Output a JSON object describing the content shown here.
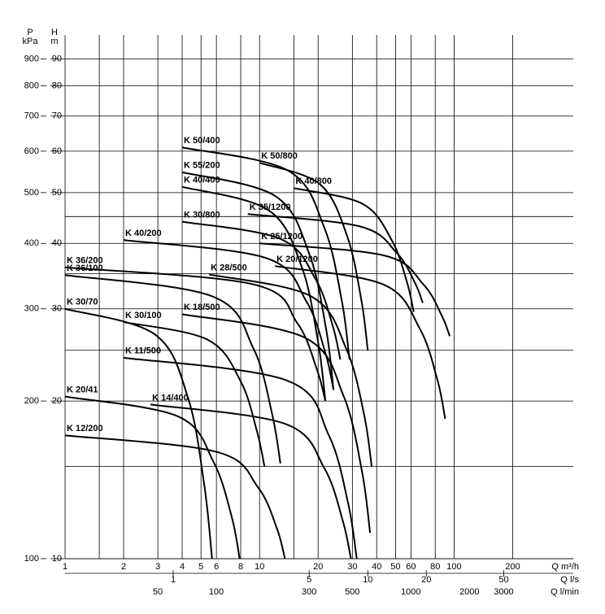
{
  "chart_data": {
    "type": "line",
    "x_scale": "log",
    "y_scale": "log",
    "grid": true,
    "xlabel": "Q m³/h",
    "xlim": [
      1,
      410
    ],
    "xticks": [
      1,
      2,
      3,
      4,
      5,
      6,
      8,
      10,
      20,
      30,
      40,
      50,
      60,
      80,
      100,
      200
    ],
    "xgrid_minor": [
      1.5,
      15
    ],
    "x2label": "Q l/s",
    "x2lim": [
      0.278,
      113.9
    ],
    "x2ticks": [
      1,
      5,
      10,
      20,
      50
    ],
    "x3label": "Q l/min",
    "x3lim": [
      16.7,
      6833
    ],
    "x3ticks": [
      50,
      100,
      300,
      500,
      1000,
      2000,
      3000
    ],
    "ylabel": "H",
    "yunit": "m",
    "ylim": [
      10,
      100
    ],
    "yticks": [
      10,
      20,
      30,
      40,
      50,
      60,
      70,
      80,
      90
    ],
    "ygrid_minor": [
      15,
      25,
      35,
      45
    ],
    "y2label": "P",
    "y2unit": "kPa",
    "y2lim": [
      100,
      1000
    ],
    "y2ticks": [
      100,
      200,
      300,
      400,
      500,
      600,
      700,
      800,
      900
    ],
    "series": [
      {
        "name": "K 50/400",
        "color": "#000000",
        "x": [
          4,
          14,
          21.5,
          26.5,
          29
        ],
        "values": [
          61,
          55.1,
          42.9,
          31.0,
          24
        ]
      },
      {
        "name": "K 55/200",
        "color": "#000000",
        "x": [
          4,
          12,
          18,
          22,
          24
        ],
        "values": [
          54.7,
          49.3,
          38.2,
          27.4,
          21
        ]
      },
      {
        "name": "K 40/400",
        "color": "#000000",
        "x": [
          4,
          11.1,
          16.5,
          20.0,
          21.8
        ],
        "values": [
          51.3,
          46.3,
          36.0,
          25.9,
          20
        ]
      },
      {
        "name": "K 50/800",
        "color": "#000000",
        "x": [
          10,
          20.4,
          28.2,
          33.4,
          36
        ],
        "values": [
          57,
          51.9,
          41.3,
          31.1,
          25
        ]
      },
      {
        "name": "K 40/800",
        "color": "#000000",
        "x": [
          15,
          33.8,
          47.9,
          57.3,
          62
        ],
        "values": [
          51,
          47.6,
          40.5,
          33.7,
          29.6
        ]
      },
      {
        "name": "K 30/800",
        "color": "#000000",
        "x": [
          4,
          12.8,
          19.4,
          23.8,
          26
        ],
        "values": [
          44,
          40.8,
          34.2,
          27.8,
          24
        ]
      },
      {
        "name": "K 35/1200",
        "color": "#000000",
        "x": [
          8.7,
          32.8,
          50.9,
          63,
          69
        ],
        "values": [
          45.5,
          43.1,
          38.3,
          33.6,
          30.8
        ]
      },
      {
        "name": "K 25/1200",
        "color": "#000000",
        "x": [
          10,
          44,
          69.5,
          86.5,
          95
        ],
        "values": [
          40,
          37.9,
          33.4,
          29.1,
          26.6
        ]
      },
      {
        "name": "K 20/1200",
        "color": "#000000",
        "x": [
          12,
          43.2,
          66.6,
          82.2,
          90
        ],
        "values": [
          36.2,
          33.4,
          27.5,
          21.9,
          18.5
        ]
      },
      {
        "name": "K 40/200",
        "color": "#000000",
        "x": [
          2,
          10.8,
          17.4,
          21.8,
          24
        ],
        "values": [
          40.6,
          37.5,
          31.0,
          24.7,
          21
        ]
      },
      {
        "name": "K 36/200",
        "color": "#000000",
        "x": [
          1,
          9.3,
          15.6,
          19.7,
          21.8
        ],
        "values": [
          36,
          33.4,
          28.2,
          23.0,
          20
        ]
      },
      {
        "name": "K 36/100",
        "color": "#000000",
        "x": [
          1,
          5.7,
          9.3,
          11.6,
          12.8
        ],
        "values": [
          34.8,
          31.7,
          25.2,
          18.9,
          15.2
        ]
      },
      {
        "name": "K 28/500",
        "color": "#000000",
        "x": [
          5.5,
          18.4,
          28.0,
          34.5,
          37.7
        ],
        "values": [
          34.9,
          31.7,
          25.1,
          18.8,
          15
        ]
      },
      {
        "name": "K 30/70",
        "color": "#000000",
        "x": [
          1,
          2.9,
          4.3,
          5.2,
          5.7
        ],
        "values": [
          30,
          26.8,
          20.2,
          13.8,
          10
        ]
      },
      {
        "name": "K 30/100",
        "color": "#000000",
        "x": [
          2,
          5.4,
          8.0,
          9.7,
          10.6
        ],
        "values": [
          28.3,
          26.2,
          21.8,
          17.5,
          15
        ]
      },
      {
        "name": "K 18/500",
        "color": "#000000",
        "x": [
          4,
          17.2,
          27.1,
          33.7,
          37
        ],
        "values": [
          29.3,
          26.4,
          20.4,
          14.6,
          11.2
        ]
      },
      {
        "name": "K 11/500",
        "color": "#000000",
        "x": [
          2,
          13.8,
          22.7,
          28.6,
          31.6
        ],
        "values": [
          24.2,
          21.9,
          17.2,
          12.7,
          10
        ]
      },
      {
        "name": "K 20/41",
        "color": "#000000",
        "x": [
          1,
          3.8,
          5.8,
          7.2,
          7.9
        ],
        "values": [
          20.4,
          18.7,
          15.3,
          12.0,
          10
        ]
      },
      {
        "name": "K 14/400",
        "color": "#000000",
        "x": [
          2.75,
          13.5,
          21.5,
          26.8,
          29.5
        ],
        "values": [
          19.7,
          18.1,
          14.9,
          11.8,
          10
        ]
      },
      {
        "name": "K 12/200",
        "color": "#000000",
        "x": [
          1,
          6,
          9.8,
          12.3,
          13.5
        ],
        "values": [
          17.2,
          16.0,
          13.7,
          11.4,
          10
        ]
      }
    ]
  }
}
